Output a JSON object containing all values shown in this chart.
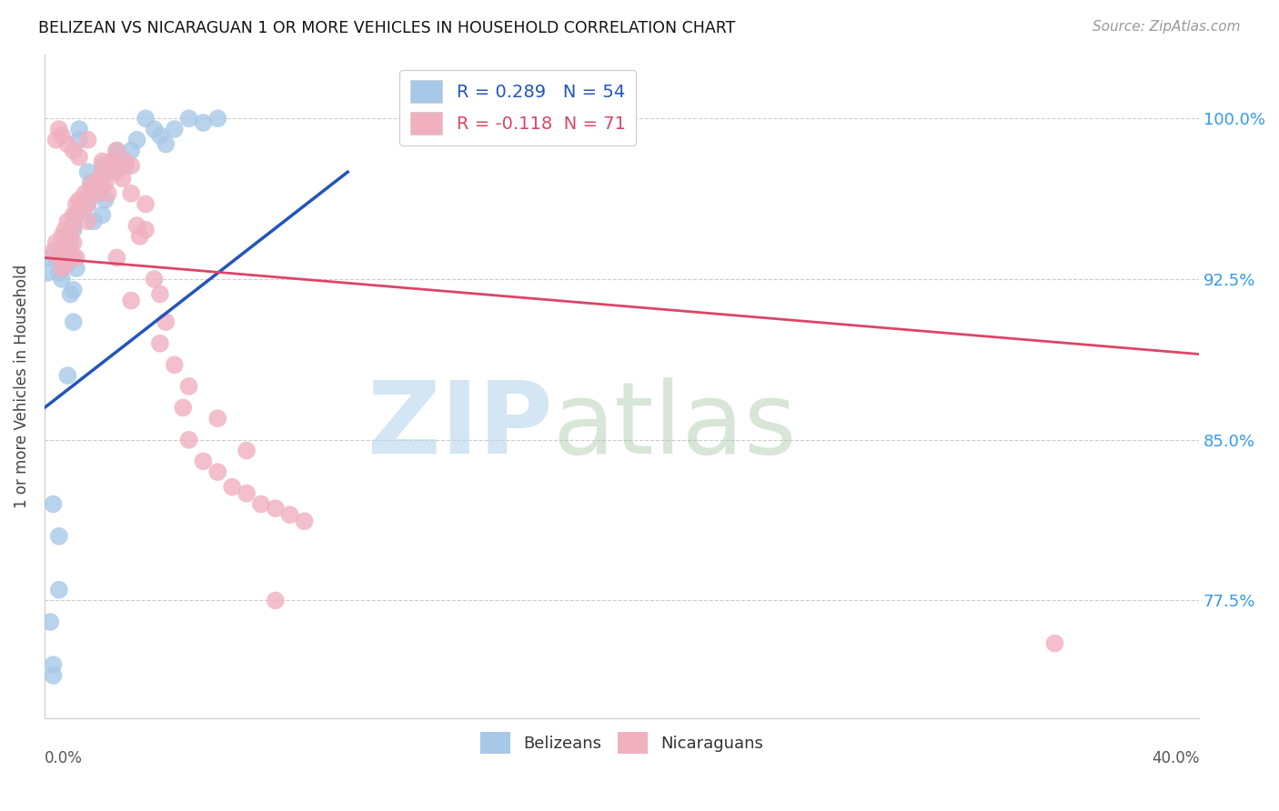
{
  "title": "BELIZEAN VS NICARAGUAN 1 OR MORE VEHICLES IN HOUSEHOLD CORRELATION CHART",
  "source": "Source: ZipAtlas.com",
  "ylabel": "1 or more Vehicles in Household",
  "belizean_color": "#a8c8e8",
  "nicaraguan_color": "#f0b0c0",
  "trend_blue": "#2255bb",
  "trend_pink": "#dd4466",
  "x_min": 0.0,
  "x_max": 40.0,
  "y_min": 72.0,
  "y_max": 103.0,
  "yticks": [
    77.5,
    85.0,
    92.5,
    100.0
  ],
  "ytick_labels": [
    "77.5%",
    "85.0%",
    "92.5%",
    "100.0%"
  ],
  "belizean_R": 0.289,
  "belizean_N": 54,
  "nicaraguan_R": -0.118,
  "nicaraguan_N": 71,
  "bel_trend_x": [
    0.0,
    10.5
  ],
  "bel_trend_y": [
    86.5,
    97.5
  ],
  "nic_trend_x": [
    0.0,
    40.0
  ],
  "nic_trend_y": [
    93.5,
    89.0
  ],
  "bel_x": [
    0.2,
    0.3,
    0.3,
    0.4,
    0.5,
    0.5,
    0.6,
    0.6,
    0.7,
    0.7,
    0.8,
    0.8,
    0.9,
    0.9,
    1.0,
    1.0,
    1.0,
    1.0,
    1.1,
    1.1,
    1.2,
    1.2,
    1.3,
    1.4,
    1.5,
    1.5,
    1.6,
    1.7,
    1.8,
    1.9,
    2.0,
    2.0,
    2.1,
    2.2,
    2.4,
    2.5,
    2.6,
    2.8,
    3.0,
    3.2,
    3.5,
    3.8,
    4.0,
    4.2,
    4.5,
    5.0,
    5.5,
    6.0,
    0.1,
    0.2,
    0.3,
    0.5,
    0.8,
    1.0
  ],
  "bel_y": [
    76.5,
    74.5,
    74.0,
    93.5,
    92.8,
    78.0,
    93.0,
    92.5,
    94.0,
    93.8,
    94.5,
    93.2,
    94.2,
    91.8,
    95.0,
    94.8,
    93.5,
    92.0,
    95.5,
    93.0,
    99.5,
    99.0,
    95.8,
    96.2,
    97.5,
    96.0,
    97.0,
    95.2,
    96.8,
    96.5,
    97.8,
    95.5,
    96.2,
    97.5,
    98.0,
    98.5,
    98.2,
    97.8,
    98.5,
    99.0,
    100.0,
    99.5,
    99.2,
    98.8,
    99.5,
    100.0,
    99.8,
    100.0,
    92.8,
    93.5,
    82.0,
    80.5,
    88.0,
    90.5
  ],
  "nic_x": [
    0.3,
    0.4,
    0.5,
    0.6,
    0.6,
    0.7,
    0.7,
    0.8,
    0.8,
    0.9,
    0.9,
    1.0,
    1.0,
    1.0,
    1.1,
    1.1,
    1.2,
    1.3,
    1.4,
    1.5,
    1.5,
    1.6,
    1.7,
    1.8,
    1.9,
    2.0,
    2.0,
    2.1,
    2.2,
    2.3,
    2.4,
    2.5,
    2.5,
    2.7,
    2.8,
    3.0,
    3.0,
    3.2,
    3.3,
    3.5,
    3.5,
    3.8,
    4.0,
    4.2,
    4.5,
    4.8,
    5.0,
    5.5,
    6.0,
    6.5,
    7.0,
    7.5,
    8.0,
    8.5,
    9.0,
    0.4,
    0.5,
    0.6,
    0.8,
    1.0,
    1.2,
    1.5,
    2.0,
    2.5,
    3.0,
    4.0,
    5.0,
    6.0,
    7.0,
    35.0,
    8.0
  ],
  "nic_y": [
    93.8,
    94.2,
    93.5,
    94.5,
    93.0,
    94.8,
    93.2,
    95.2,
    94.0,
    94.5,
    93.8,
    95.5,
    95.0,
    94.2,
    96.0,
    93.5,
    96.2,
    95.8,
    96.5,
    96.0,
    95.2,
    96.8,
    97.0,
    96.5,
    97.2,
    97.5,
    96.8,
    97.0,
    96.5,
    98.0,
    97.8,
    98.5,
    97.5,
    97.2,
    98.0,
    96.5,
    97.8,
    95.0,
    94.5,
    96.0,
    94.8,
    92.5,
    91.8,
    90.5,
    88.5,
    86.5,
    85.0,
    84.0,
    83.5,
    82.8,
    82.5,
    82.0,
    81.8,
    81.5,
    81.2,
    99.0,
    99.5,
    99.2,
    98.8,
    98.5,
    98.2,
    99.0,
    98.0,
    93.5,
    91.5,
    89.5,
    87.5,
    86.0,
    84.5,
    75.5,
    77.5
  ]
}
